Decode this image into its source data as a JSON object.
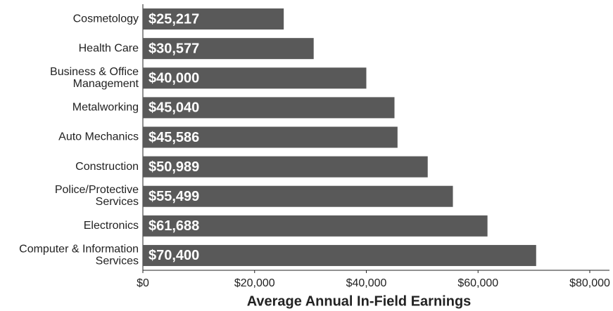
{
  "chart_data": {
    "type": "bar",
    "orientation": "horizontal",
    "x_label": "Average Annual In-Field Earnings",
    "categories": [
      "Cosmetology",
      "Health Care",
      "Business & Office\nManagement",
      "Metalworking",
      "Auto Mechanics",
      "Construction",
      "Police/Protective\nServices",
      "Electronics",
      "Computer & Information\nServices"
    ],
    "values": [
      25217,
      30577,
      40000,
      45040,
      45586,
      50989,
      55499,
      61688,
      70400
    ],
    "value_labels": [
      "$25,217",
      "$30,577",
      "$40,000",
      "$45,040",
      "$45,586",
      "$50,989",
      "$55,499",
      "$61,688",
      "$70,400"
    ],
    "color": "#595959",
    "xlim": [
      0,
      80000
    ],
    "xticks": [
      {
        "value": 0,
        "label": "$0"
      },
      {
        "value": 20000,
        "label": "$20,000"
      },
      {
        "value": 40000,
        "label": "$40,000"
      },
      {
        "value": 60000,
        "label": "$60,000"
      },
      {
        "value": 80000,
        "label": "$80,000"
      }
    ],
    "grid": false
  }
}
